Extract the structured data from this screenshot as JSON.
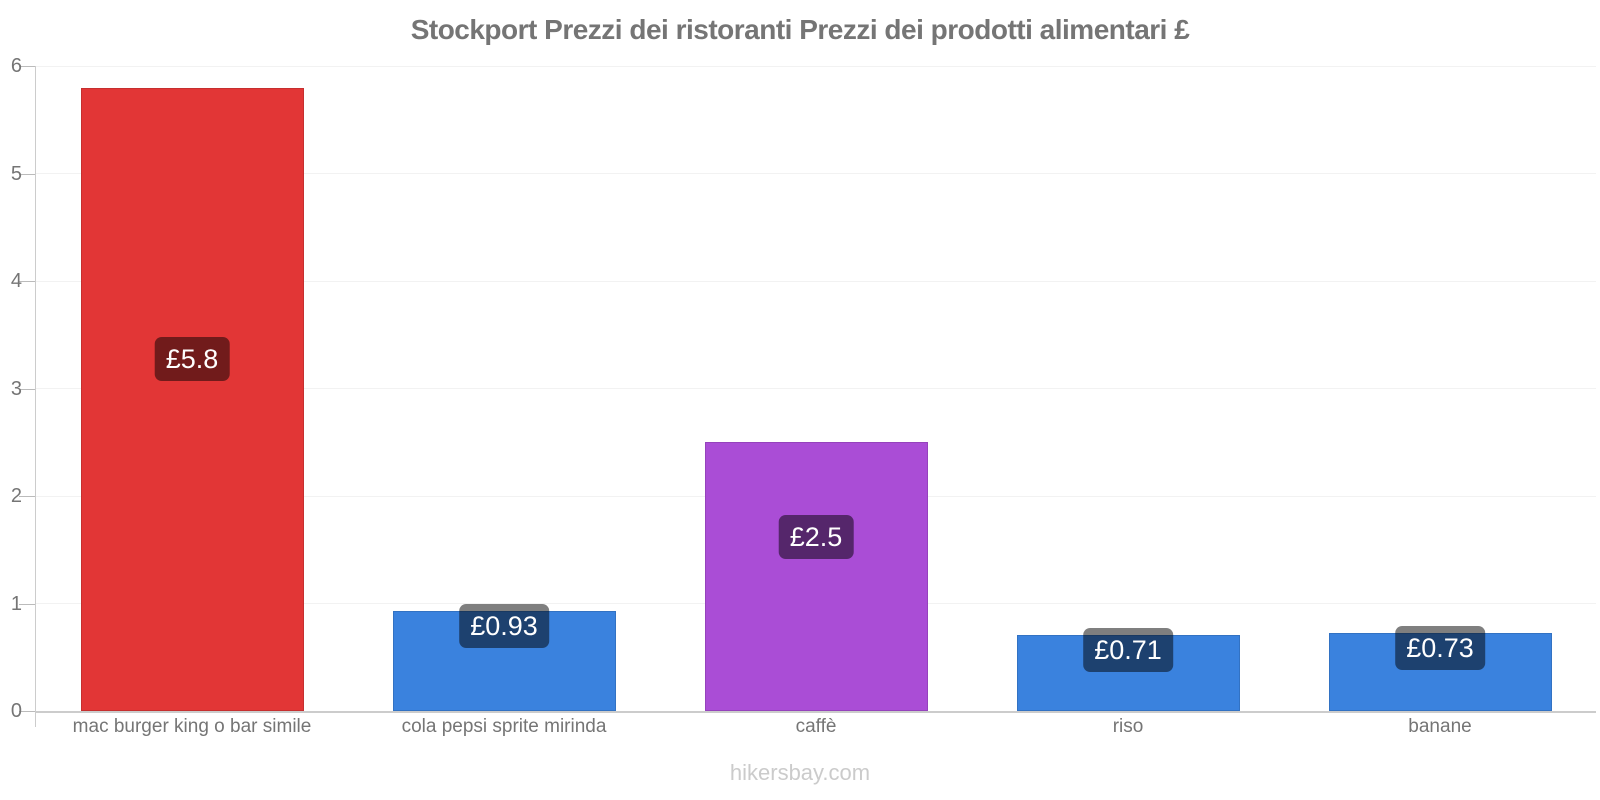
{
  "chart_data": {
    "type": "bar",
    "title": "Stockport Prezzi dei ristoranti Prezzi dei prodotti alimentari £",
    "currency_symbol": "£",
    "categories": [
      "mac burger king o bar simile",
      "cola pepsi sprite mirinda",
      "caffè",
      "riso",
      "banane"
    ],
    "values": [
      5.8,
      0.93,
      2.5,
      0.71,
      0.73
    ],
    "value_labels": [
      "£5.8",
      "£0.93",
      "£2.5",
      "£0.71",
      "£0.73"
    ],
    "bar_colors": [
      "#e23636",
      "#3a82de",
      "#aa4dd6",
      "#3a82de",
      "#3a82de"
    ],
    "ylim": [
      0,
      6
    ],
    "yticks": [
      0,
      1,
      2,
      3,
      4,
      5,
      6
    ],
    "grid": true,
    "legend": false,
    "value_label_bg": "rgba(0,0,0,0.5)",
    "value_label_color": "#ffffff"
  },
  "footer": {
    "text": "hikersbay.com"
  },
  "colors": {
    "background": "#ffffff",
    "title_text": "#757575",
    "axis_text": "#757575",
    "axis_line": "#cccccc",
    "gridline": "#f2f2f2",
    "watermark_text": "#cbcbcb"
  }
}
